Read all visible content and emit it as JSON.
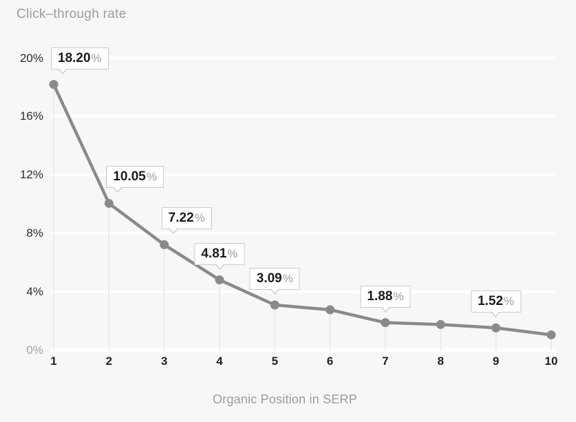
{
  "page": {
    "background": "#f7f7f7"
  },
  "chart_data": {
    "type": "line",
    "title": "Click–through rate",
    "xlabel": "Organic Position in SERP",
    "categories": [
      "1",
      "2",
      "3",
      "4",
      "5",
      "6",
      "7",
      "8",
      "9",
      "10"
    ],
    "values": [
      18.2,
      10.05,
      7.22,
      4.81,
      3.09,
      2.76,
      1.88,
      1.75,
      1.52,
      1.04
    ],
    "ylim": [
      0,
      20
    ],
    "grid": true,
    "legend": false,
    "yticks": [
      {
        "value": 0,
        "label": "0%",
        "muted": true
      },
      {
        "value": 4,
        "label": "4%",
        "muted": false
      },
      {
        "value": 8,
        "label": "8%",
        "muted": false
      },
      {
        "value": 12,
        "label": "12%",
        "muted": false
      },
      {
        "value": 16,
        "label": "16%",
        "muted": false
      },
      {
        "value": 20,
        "label": "20%",
        "muted": false
      }
    ],
    "point_labels": [
      {
        "index": 0,
        "text": "18.20",
        "suffix": "%",
        "align": "left"
      },
      {
        "index": 1,
        "text": "10.05",
        "suffix": "%",
        "align": "left"
      },
      {
        "index": 2,
        "text": "7.22",
        "suffix": "%",
        "align": "left"
      },
      {
        "index": 3,
        "text": "4.81",
        "suffix": "%",
        "align": "center"
      },
      {
        "index": 4,
        "text": "3.09",
        "suffix": "%",
        "align": "center"
      },
      {
        "index": 6,
        "text": "1.88",
        "suffix": "%",
        "align": "center"
      },
      {
        "index": 8,
        "text": "1.52",
        "suffix": "%",
        "align": "center"
      }
    ],
    "colors": {
      "line": "#8a8a8a",
      "point": "#8a8a8a",
      "grid": "#ffffff",
      "dropline": "#e6e6e6",
      "background": "#f7f7f7",
      "title": "#9c9c9c",
      "axis_text": "#2d2d2d",
      "axis_text_muted": "#9e9e9e",
      "xtick_text": "#222222",
      "label_text": "#1b1b1b",
      "label_suffix": "#9c9c9c",
      "label_border": "#c9c9c9",
      "label_background": "#ffffff"
    }
  }
}
